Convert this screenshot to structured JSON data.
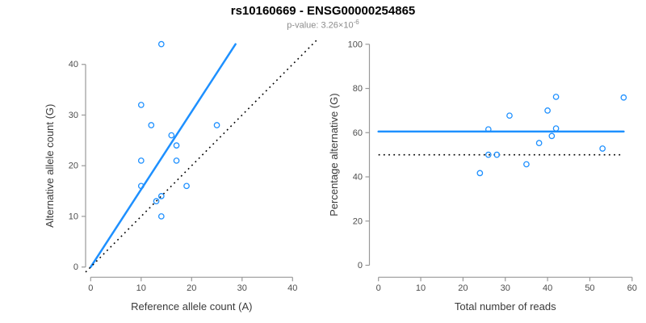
{
  "header": {
    "title": "rs10160669 - ENSG00000254865",
    "subtitle_prefix": "p-value: 3.26×10",
    "subtitle_exponent": "-6"
  },
  "colors": {
    "accent_blue": "#1E90FF",
    "dotted_black": "#000000",
    "axis_line": "#999999",
    "tick_label": "#4d4d4d",
    "axis_title": "#3a3a3a",
    "subtitle_gray": "#8c8c8c"
  },
  "chart_data": [
    {
      "type": "scatter",
      "marker": "open-circle",
      "xlabel": "Reference allele count (A)",
      "ylabel": "Alternative allele count (G)",
      "xlim": [
        0,
        40
      ],
      "ylim": [
        0,
        40
      ],
      "xticks": [
        0,
        10,
        20,
        30,
        40
      ],
      "yticks": [
        0,
        10,
        20,
        30,
        40
      ],
      "grid": false,
      "points": [
        [
          14,
          44
        ],
        [
          10,
          32
        ],
        [
          12,
          28
        ],
        [
          25,
          28
        ],
        [
          16,
          26
        ],
        [
          17,
          24
        ],
        [
          10,
          21
        ],
        [
          17,
          21
        ],
        [
          10,
          16
        ],
        [
          19,
          16
        ],
        [
          14,
          14
        ],
        [
          13,
          13
        ],
        [
          14,
          10
        ]
      ],
      "lines": [
        {
          "name": "fitted-allelic-ratio-line",
          "style": "solid",
          "color": "#1E90FF",
          "from": [
            0,
            0
          ],
          "to": [
            28.7,
            44.0
          ]
        },
        {
          "name": "identity-line",
          "style": "dotted",
          "color": "#000000",
          "from": [
            -1,
            -1
          ],
          "to": [
            44.8,
            44.8
          ]
        }
      ]
    },
    {
      "type": "scatter",
      "marker": "open-circle",
      "xlabel": "Total number of reads",
      "ylabel": "Percentage alternative (G)",
      "xlim": [
        0,
        60
      ],
      "ylim": [
        0,
        100
      ],
      "xticks": [
        0,
        10,
        20,
        30,
        40,
        50,
        60
      ],
      "yticks": [
        0,
        20,
        40,
        60,
        80,
        100
      ],
      "grid": false,
      "points": [
        [
          58,
          75.9
        ],
        [
          42,
          76.2
        ],
        [
          40,
          70.0
        ],
        [
          53,
          52.8
        ],
        [
          42,
          61.9
        ],
        [
          41,
          58.5
        ],
        [
          31,
          67.7
        ],
        [
          38,
          55.3
        ],
        [
          26,
          61.5
        ],
        [
          35,
          45.7
        ],
        [
          28,
          50.0
        ],
        [
          26,
          50.0
        ],
        [
          24,
          41.7
        ]
      ],
      "lines": [
        {
          "name": "mean-percentage-line",
          "style": "solid",
          "color": "#1E90FF",
          "from": [
            0,
            60.5
          ],
          "to": [
            58,
            60.5
          ]
        },
        {
          "name": "null-50pct-line",
          "style": "dotted",
          "color": "#000000",
          "from": [
            0,
            50
          ],
          "to": [
            58,
            50
          ]
        }
      ]
    }
  ]
}
